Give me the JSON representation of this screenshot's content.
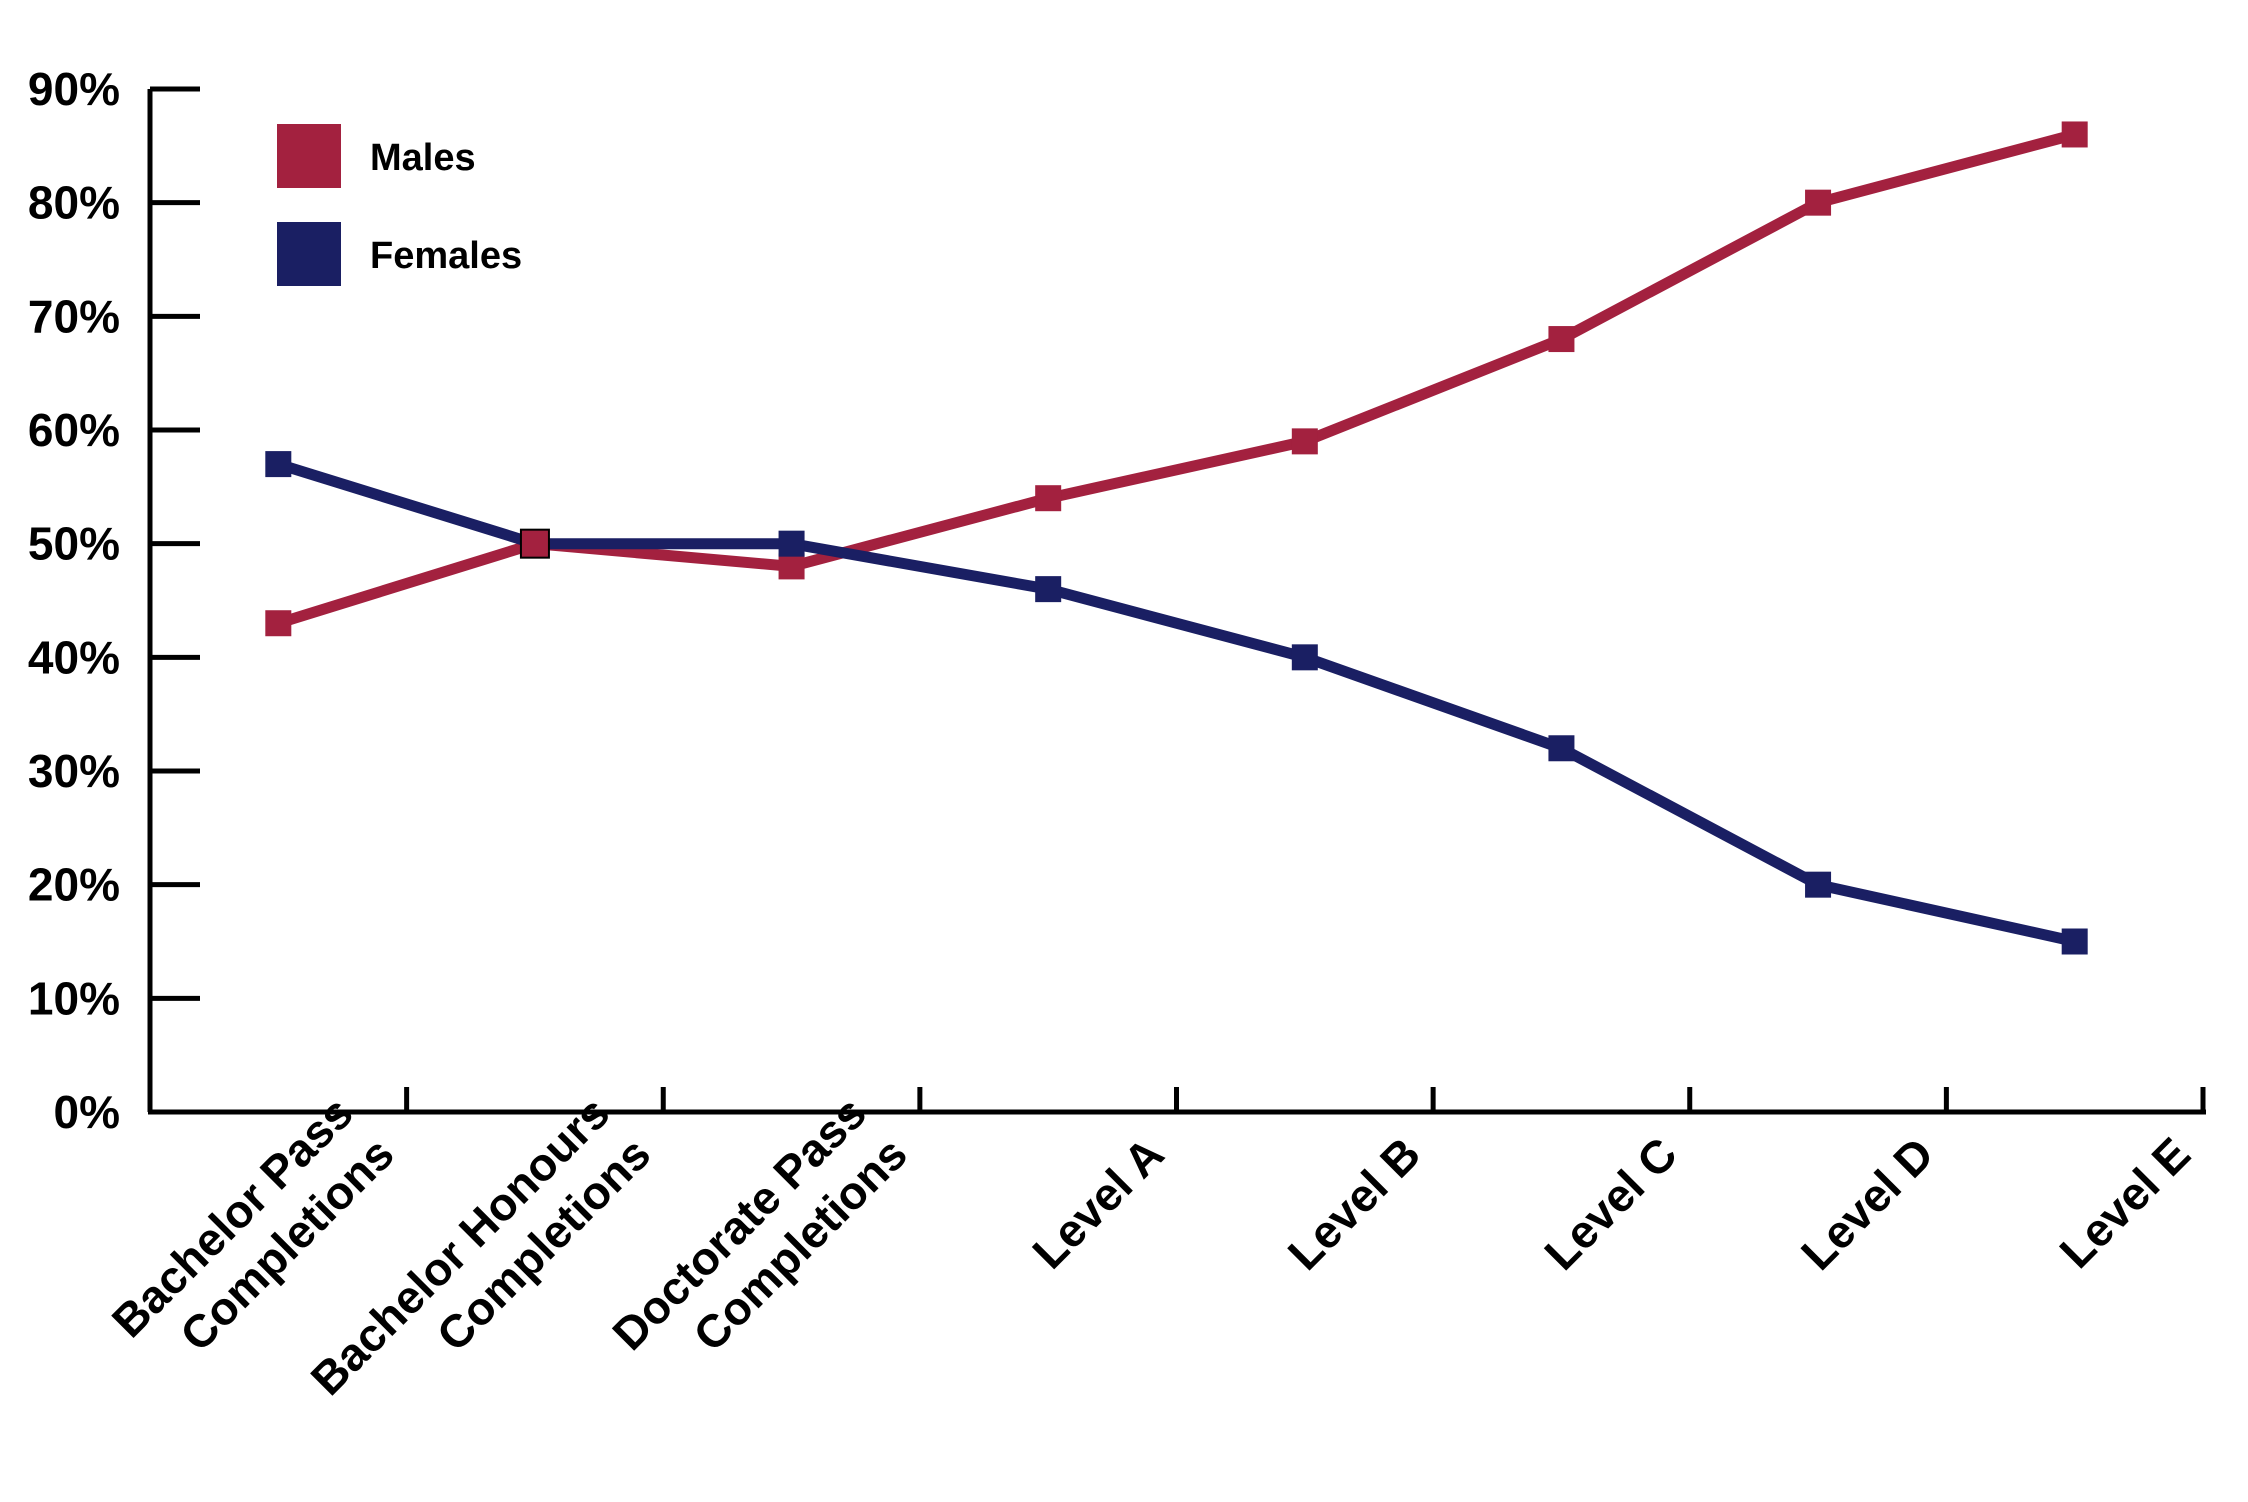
{
  "chart_data": {
    "type": "line",
    "categories": [
      [
        "Bachelor Pass",
        "Completions"
      ],
      [
        "Bachelor Honours",
        "Completions"
      ],
      [
        "Doctorate Pass",
        "Completions"
      ],
      [
        "Level A"
      ],
      [
        "Level B"
      ],
      [
        "Level C"
      ],
      [
        "Level D"
      ],
      [
        "Level E"
      ]
    ],
    "series": [
      {
        "name": "Males",
        "color": "#a3213f",
        "values": [
          43,
          50,
          48,
          54,
          59,
          68,
          80,
          86
        ]
      },
      {
        "name": "Females",
        "color": "#1a1f63",
        "values": [
          57,
          50,
          50,
          46,
          40,
          32,
          20,
          15
        ]
      }
    ],
    "y_ticks": [
      "0%",
      "10%",
      "20%",
      "30%",
      "40%",
      "50%",
      "60%",
      "70%",
      "80%",
      "90%"
    ],
    "ylim": [
      0,
      90
    ],
    "legend_position": "top-left",
    "grid": false
  }
}
